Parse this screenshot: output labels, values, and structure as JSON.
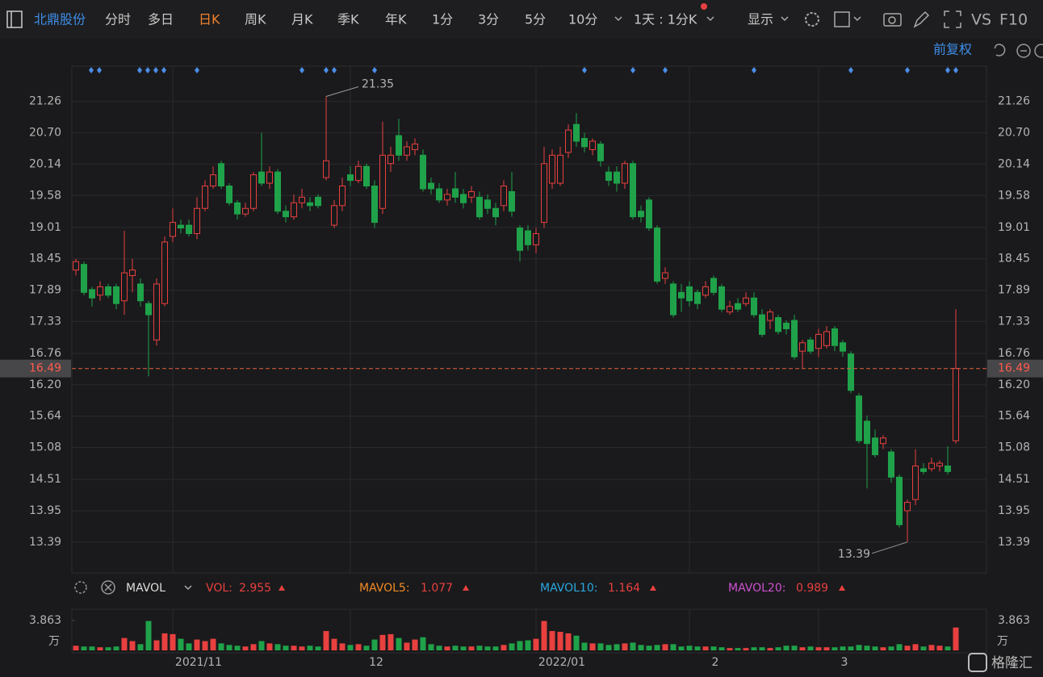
{
  "toolbar": {
    "stock": "北鼎股份",
    "tabs": [
      "分时",
      "多日",
      "日K",
      "周K",
      "月K",
      "季K",
      "年K",
      "1分",
      "3分",
      "5分",
      "10分"
    ],
    "period": "1天 : 1分K",
    "display": "显示",
    "vs": "VS",
    "f10": "F10",
    "adjust": "前复权"
  },
  "volume_panel": {
    "name": "MAVOL",
    "unit": "万",
    "lines": [
      {
        "name": "MAVOL5:",
        "value": 1.077,
        "color": "#f08a24"
      },
      {
        "name": "MAVOL10:",
        "value": 1.164,
        "color": "#2aa8e0"
      },
      {
        "name": "MAVOL20:",
        "value": 0.989,
        "color": "#d050d0"
      }
    ]
  },
  "watermark": "格隆汇",
  "chart_data": {
    "type": "candlestick",
    "up_color": "#e8403f",
    "down_color": "#1fa24a",
    "ylim": [
      12.84,
      21.89
    ],
    "yticks": [
      21.26,
      {
        "value": 20.7,
        "label": "20.70"
      },
      20.14,
      19.58,
      19.01,
      18.45,
      17.89,
      17.33,
      16.76,
      {
        "value": 16.2,
        "label": "16.20"
      },
      15.64,
      15.08,
      14.51,
      13.95,
      13.39
    ],
    "grid": true,
    "categories": [
      null,
      null,
      null,
      null,
      null,
      null,
      null,
      null,
      null,
      null,
      null,
      null,
      "2021/11",
      null,
      null,
      null,
      null,
      null,
      null,
      null,
      null,
      null,
      null,
      null,
      null,
      null,
      null,
      null,
      null,
      null,
      null,
      null,
      null,
      null,
      "12",
      null,
      null,
      null,
      null,
      null,
      null,
      null,
      null,
      null,
      null,
      null,
      null,
      null,
      null,
      null,
      null,
      null,
      null,
      null,
      null,
      null,
      null,
      "2022/01",
      null,
      null,
      null,
      null,
      null,
      null,
      null,
      null,
      null,
      null,
      null,
      null,
      null,
      null,
      null,
      null,
      null,
      null,
      "2",
      null,
      null,
      null,
      null,
      null,
      null,
      null,
      null,
      null,
      null,
      null,
      null,
      null,
      null,
      null,
      "3",
      null,
      null,
      null,
      null,
      null,
      null,
      null,
      null,
      null,
      null,
      null,
      null,
      null,
      null,
      null,
      null,
      null
    ],
    "open": [
      18.25,
      18.35,
      17.9,
      17.8,
      17.95,
      17.95,
      17.7,
      18.15,
      18.0,
      17.65,
      17.0,
      17.65,
      18.85,
      19.05,
      19.05,
      18.9,
      19.35,
      19.75,
      20.15,
      19.75,
      19.45,
      19.25,
      19.35,
      20.0,
      19.8,
      20.0,
      19.3,
      19.2,
      19.45,
      19.45,
      19.55,
      19.9,
      19.05,
      19.4,
      19.95,
      19.85,
      20.1,
      19.75,
      19.35,
      20.15,
      20.65,
      20.3,
      20.4,
      20.3,
      19.8,
      19.7,
      19.5,
      19.7,
      19.6,
      19.55,
      19.55,
      19.5,
      19.35,
      19.4,
      19.65,
      19.0,
      18.95,
      18.7,
      19.1,
      19.8,
      19.8,
      20.35,
      20.85,
      20.6,
      20.4,
      20.5,
      20.0,
      20.0,
      19.8,
      20.15,
      19.3,
      19.5,
      19.0,
      18.1,
      18.0,
      17.85,
      17.95,
      17.85,
      17.8,
      18.1,
      17.95,
      17.5,
      17.65,
      17.65,
      17.75,
      17.45,
      17.35,
      17.4,
      17.3,
      17.35,
      16.8,
      17.0,
      16.85,
      16.9,
      17.2,
      16.95,
      16.75,
      16.0,
      15.55,
      15.25,
      15.15,
      15.0,
      14.55,
      13.95,
      14.15,
      14.7,
      14.7,
      14.75,
      14.75,
      15.2
    ],
    "high": [
      18.45,
      18.4,
      17.95,
      18.05,
      18.0,
      18.0,
      18.95,
      18.45,
      18.1,
      17.7,
      18.1,
      18.85,
      19.35,
      19.15,
      19.15,
      19.55,
      19.85,
      20.1,
      20.2,
      19.8,
      19.5,
      19.45,
      20.0,
      20.7,
      20.1,
      20.05,
      19.4,
      19.6,
      19.7,
      19.55,
      19.6,
      21.35,
      19.5,
      19.9,
      20.1,
      20.2,
      20.15,
      19.85,
      20.9,
      20.45,
      20.95,
      20.55,
      20.6,
      20.4,
      19.9,
      19.8,
      19.7,
      20.0,
      19.7,
      19.75,
      19.65,
      19.6,
      19.45,
      19.85,
      20.0,
      19.05,
      19.05,
      19.0,
      20.45,
      20.4,
      20.45,
      20.85,
      21.05,
      20.7,
      20.6,
      20.55,
      20.1,
      20.1,
      20.2,
      20.2,
      19.4,
      19.55,
      19.05,
      18.3,
      18.05,
      18.0,
      18.05,
      17.9,
      18.05,
      18.15,
      18.0,
      17.7,
      17.75,
      17.85,
      17.85,
      17.55,
      17.55,
      17.45,
      17.35,
      17.45,
      17.0,
      17.05,
      17.2,
      17.25,
      17.25,
      17.0,
      16.8,
      16.05,
      15.65,
      15.4,
      15.3,
      15.05,
      14.6,
      14.15,
      15.05,
      14.8,
      14.9,
      14.85,
      15.1,
      17.55
    ],
    "low": [
      18.15,
      17.8,
      17.6,
      17.7,
      17.75,
      17.55,
      17.45,
      17.85,
      17.6,
      16.35,
      16.9,
      17.6,
      18.75,
      18.9,
      18.85,
      18.8,
      19.3,
      19.7,
      19.7,
      19.4,
      19.15,
      19.2,
      19.3,
      19.75,
      19.7,
      19.25,
      19.1,
      19.15,
      19.35,
      19.3,
      19.35,
      19.85,
      19.0,
      19.3,
      19.75,
      19.8,
      19.7,
      19.0,
      19.25,
      20.0,
      20.2,
      20.2,
      20.3,
      19.65,
      19.6,
      19.45,
      19.4,
      19.45,
      19.35,
      19.45,
      19.15,
      19.25,
      19.05,
      19.3,
      19.2,
      18.4,
      18.6,
      18.55,
      19.0,
      19.7,
      19.75,
      20.25,
      20.45,
      20.35,
      20.3,
      20.1,
      19.75,
      19.65,
      19.7,
      19.15,
      19.1,
      18.95,
      18.0,
      18.0,
      17.4,
      17.5,
      17.6,
      17.55,
      17.75,
      17.8,
      17.5,
      17.45,
      17.5,
      17.6,
      17.4,
      17.05,
      17.2,
      17.1,
      17.1,
      16.65,
      16.5,
      16.75,
      16.7,
      16.85,
      16.8,
      16.7,
      16.05,
      15.15,
      14.35,
      14.9,
      15.05,
      14.45,
      13.65,
      13.39,
      14.05,
      14.6,
      14.65,
      14.65,
      14.6,
      15.15
    ],
    "close": [
      18.4,
      17.85,
      17.75,
      17.95,
      17.8,
      17.65,
      18.2,
      18.25,
      17.7,
      17.45,
      18.0,
      18.75,
      19.1,
      19.0,
      18.9,
      19.35,
      19.75,
      19.95,
      19.75,
      19.45,
      19.25,
      19.35,
      19.95,
      19.8,
      20.0,
      19.3,
      19.2,
      19.45,
      19.55,
      19.4,
      19.4,
      20.2,
      19.4,
      19.75,
      19.85,
      20.1,
      19.75,
      19.1,
      20.3,
      20.3,
      20.3,
      20.45,
      20.5,
      19.7,
      19.7,
      19.5,
      19.6,
      19.55,
      19.45,
      19.65,
      19.2,
      19.35,
      19.2,
      19.75,
      19.3,
      18.6,
      18.7,
      18.9,
      20.15,
      20.3,
      20.3,
      20.75,
      20.55,
      20.45,
      20.55,
      20.2,
      19.85,
      19.8,
      20.15,
      19.2,
      19.2,
      19.0,
      18.05,
      18.2,
      17.45,
      17.75,
      17.7,
      17.65,
      17.95,
      17.85,
      17.55,
      17.6,
      17.55,
      17.75,
      17.45,
      17.1,
      17.5,
      17.15,
      17.2,
      16.7,
      16.95,
      16.8,
      17.1,
      17.15,
      16.9,
      16.8,
      16.1,
      15.2,
      15.15,
      14.95,
      15.25,
      14.55,
      13.7,
      14.1,
      14.75,
      14.65,
      14.8,
      14.8,
      14.65,
      16.49
    ],
    "volume": [
      0.6,
      0.5,
      0.5,
      0.4,
      0.4,
      0.5,
      1.6,
      1.2,
      0.8,
      3.8,
      1.3,
      2.2,
      2.1,
      1.5,
      0.9,
      1.4,
      1.2,
      1.5,
      0.9,
      0.7,
      0.6,
      0.5,
      0.8,
      1.2,
      0.9,
      0.8,
      0.6,
      0.6,
      0.5,
      0.6,
      0.5,
      2.5,
      1.5,
      0.9,
      0.7,
      0.8,
      0.6,
      1.4,
      2.0,
      2.1,
      1.6,
      1.0,
      1.4,
      1.7,
      0.8,
      0.6,
      0.5,
      0.6,
      0.5,
      0.5,
      0.6,
      0.5,
      0.5,
      0.7,
      0.9,
      1.2,
      1.3,
      1.5,
      3.8,
      2.5,
      2.4,
      2.2,
      1.9,
      1.0,
      0.9,
      0.9,
      0.7,
      0.8,
      0.9,
      1.0,
      0.7,
      0.6,
      0.7,
      0.8,
      0.8,
      0.5,
      0.6,
      0.5,
      0.5,
      0.5,
      0.4,
      0.3,
      0.3,
      0.3,
      0.4,
      0.4,
      0.3,
      0.4,
      0.6,
      0.6,
      0.4,
      0.5,
      0.4,
      0.4,
      0.4,
      0.5,
      0.5,
      0.7,
      0.6,
      0.5,
      0.4,
      0.5,
      0.8,
      0.6,
      0.8,
      0.5,
      0.7,
      0.6,
      0.5,
      2.955
    ],
    "volume_label": "VOL:",
    "volume_ylim": [
      0,
      4.8
    ],
    "volume_yticks": [
      3.863
    ]
  }
}
